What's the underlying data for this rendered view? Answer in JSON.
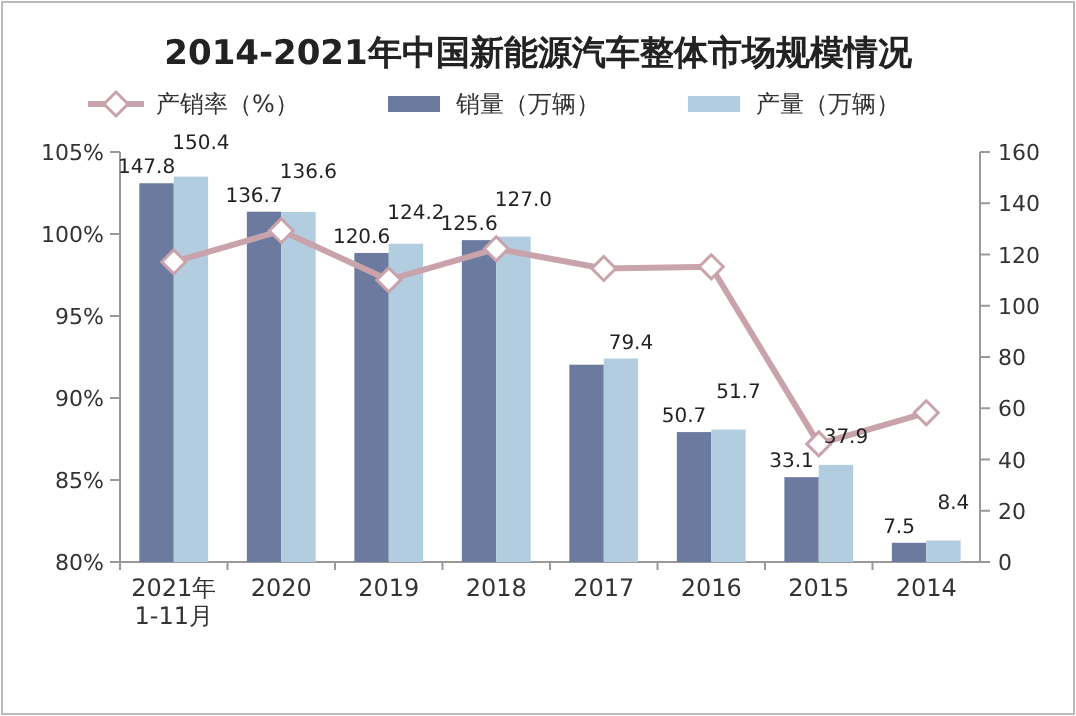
{
  "chart_data": {
    "type": "bar",
    "title": "2014-2021年中国新能源汽车整体市场规模情况",
    "categories": [
      "2021年1-11月",
      "2020",
      "2019",
      "2018",
      "2017",
      "2016",
      "2015",
      "2014"
    ],
    "series": [
      {
        "name": "产销率（%）",
        "type": "line",
        "color": "#c9a3ab",
        "values": [
          98.3,
          100.2,
          97.2,
          99.1,
          97.9,
          98.0,
          87.2,
          89.1
        ]
      },
      {
        "name": "销量（万辆）",
        "color": "#6b7a9e",
        "axis": "y2",
        "values": [
          147.8,
          136.7,
          120.6,
          125.6,
          77,
          50.7,
          33.1,
          7.5
        ],
        "value_labels": [
          "147.8",
          "136.7",
          "120.6",
          "125.6",
          null,
          "50.7",
          "33.1",
          "7.5"
        ]
      },
      {
        "name": "产量（万辆）",
        "color": "#b3cde0",
        "axis": "y2",
        "values": [
          150.4,
          136.6,
          124.2,
          127.0,
          79.4,
          51.7,
          37.9,
          8.4
        ],
        "value_labels": [
          "150.4",
          "136.6",
          "124.2",
          "127.0",
          "79.4",
          "51.7",
          "37.9",
          "8.4"
        ]
      }
    ],
    "ylim": [
      80,
      105
    ],
    "yticks": [
      {
        "value": 80,
        "label": "80%"
      },
      {
        "value": 85,
        "label": "85%"
      },
      {
        "value": 90,
        "label": "90%"
      },
      {
        "value": 95,
        "label": "95%"
      },
      {
        "value": 100,
        "label": "100%"
      },
      {
        "value": 105,
        "label": "105%"
      }
    ],
    "y2lim": [
      0,
      160
    ],
    "y2ticks": [
      0,
      20,
      40,
      60,
      80,
      100,
      120,
      140,
      160
    ],
    "legend": "top",
    "marker": "diamond"
  }
}
